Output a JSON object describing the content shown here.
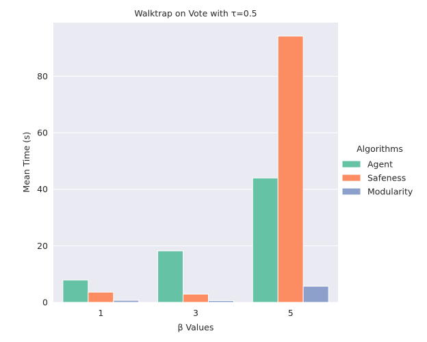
{
  "chart_data": {
    "type": "bar",
    "title": "Walktrap on Vote with τ=0.5",
    "xlabel": "β Values",
    "ylabel": "Mean Time (s)",
    "categories": [
      "1",
      "3",
      "5"
    ],
    "ylim": [
      0,
      99
    ],
    "yticks": [
      0,
      20,
      40,
      60,
      80
    ],
    "grid": true,
    "legend": {
      "title": "Algorithms",
      "placement": "right"
    },
    "series": [
      {
        "name": "Agent",
        "color": "#66c2a5",
        "values": [
          7.9,
          18.2,
          44.0
        ]
      },
      {
        "name": "Safeness",
        "color": "#fc8d62",
        "values": [
          3.6,
          2.9,
          94.2
        ]
      },
      {
        "name": "Modularity",
        "color": "#8da0cb",
        "values": [
          0.7,
          0.6,
          5.7
        ]
      }
    ],
    "colors": {
      "background": "#eaeaf2",
      "grid": "#ffffff",
      "text": "#262626"
    }
  }
}
